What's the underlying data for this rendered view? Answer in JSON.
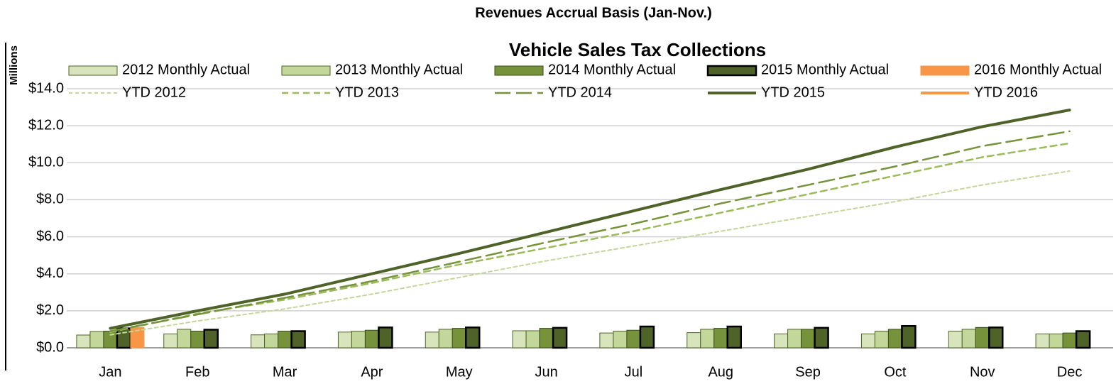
{
  "chart_data": {
    "type": "bar",
    "title": "Revenues Accrual Basis (Jan-Nov.)",
    "subtitle": "Vehicle Sales Tax Collections",
    "y_label": "Millions",
    "categories": [
      "Jan",
      "Feb",
      "Mar",
      "Apr",
      "May",
      "Jun",
      "Jul",
      "Aug",
      "Sep",
      "Oct",
      "Nov",
      "Dec"
    ],
    "ylim": [
      0,
      14
    ],
    "yticks": [
      {
        "value": 0,
        "label": "$0.0"
      },
      {
        "value": 2,
        "label": "$2.0"
      },
      {
        "value": 4,
        "label": "$4.0"
      },
      {
        "value": 6,
        "label": "$6.0"
      },
      {
        "value": 8,
        "label": "$8.0"
      },
      {
        "value": 10,
        "label": "$10.0"
      },
      {
        "value": 12,
        "label": "$12.0"
      },
      {
        "value": 14,
        "label": "$14.0"
      }
    ],
    "grid": true,
    "legend": "top",
    "series": [
      {
        "name": "2012 Monthly Actual",
        "type": "bar",
        "color": "#d8e4bc",
        "stroke": "#4f6228",
        "values": [
          0.69,
          0.75,
          0.7,
          0.85,
          0.85,
          0.92,
          0.8,
          0.82,
          0.75,
          0.75,
          0.9,
          0.75
        ]
      },
      {
        "name": "2013 Monthly Actual",
        "type": "bar",
        "color": "#c4d79b",
        "stroke": "#4f6228",
        "values": [
          0.88,
          1.0,
          0.75,
          0.9,
          1.0,
          0.92,
          0.9,
          1.0,
          1.0,
          0.9,
          1.0,
          0.75
        ]
      },
      {
        "name": "2014 Monthly Actual",
        "type": "bar",
        "color": "#76933c",
        "stroke": "#3a4a1c",
        "values": [
          0.9,
          0.9,
          0.9,
          0.95,
          1.05,
          1.05,
          0.95,
          1.05,
          1.0,
          1.0,
          1.1,
          0.8
        ]
      },
      {
        "name": "2015 Monthly Actual",
        "type": "bar",
        "color": "#4f6228",
        "stroke": "#000000",
        "values": [
          1.05,
          0.98,
          0.9,
          1.1,
          1.1,
          1.08,
          1.15,
          1.15,
          1.08,
          1.18,
          1.1,
          0.9
        ]
      },
      {
        "name": "2016 Monthly Actual",
        "type": "bar",
        "color": "#f79646",
        "stroke": "#f79646",
        "values": [
          1.1,
          null,
          null,
          null,
          null,
          null,
          null,
          null,
          null,
          null,
          null,
          null
        ]
      },
      {
        "name": "YTD 2012",
        "type": "line",
        "color": "#c4d79b",
        "line_style": "dotted",
        "values": [
          0.7,
          1.45,
          2.1,
          2.9,
          3.8,
          4.7,
          5.5,
          6.3,
          7.1,
          7.9,
          8.8,
          9.55
        ]
      },
      {
        "name": "YTD 2013",
        "type": "line",
        "color": "#9bbb59",
        "line_style": "dashed",
        "values": [
          0.85,
          1.85,
          2.6,
          3.5,
          4.5,
          5.4,
          6.3,
          7.3,
          8.3,
          9.3,
          10.3,
          11.05
        ]
      },
      {
        "name": "YTD 2014",
        "type": "line",
        "color": "#76933c",
        "line_style": "long-dashed",
        "values": [
          0.9,
          1.8,
          2.7,
          3.6,
          4.65,
          5.7,
          6.7,
          7.8,
          8.8,
          9.8,
          10.9,
          11.7
        ]
      },
      {
        "name": "YTD 2015",
        "type": "line",
        "color": "#4f6228",
        "line_style": "solid",
        "values": [
          1.05,
          2.0,
          2.9,
          4.0,
          5.1,
          6.25,
          7.4,
          8.55,
          9.65,
          10.85,
          11.95,
          12.85
        ]
      },
      {
        "name": "YTD 2016",
        "type": "line",
        "color": "#f79646",
        "line_style": "solid",
        "values": [
          1.1,
          null,
          null,
          null,
          null,
          null,
          null,
          null,
          null,
          null,
          null,
          null
        ]
      }
    ]
  }
}
